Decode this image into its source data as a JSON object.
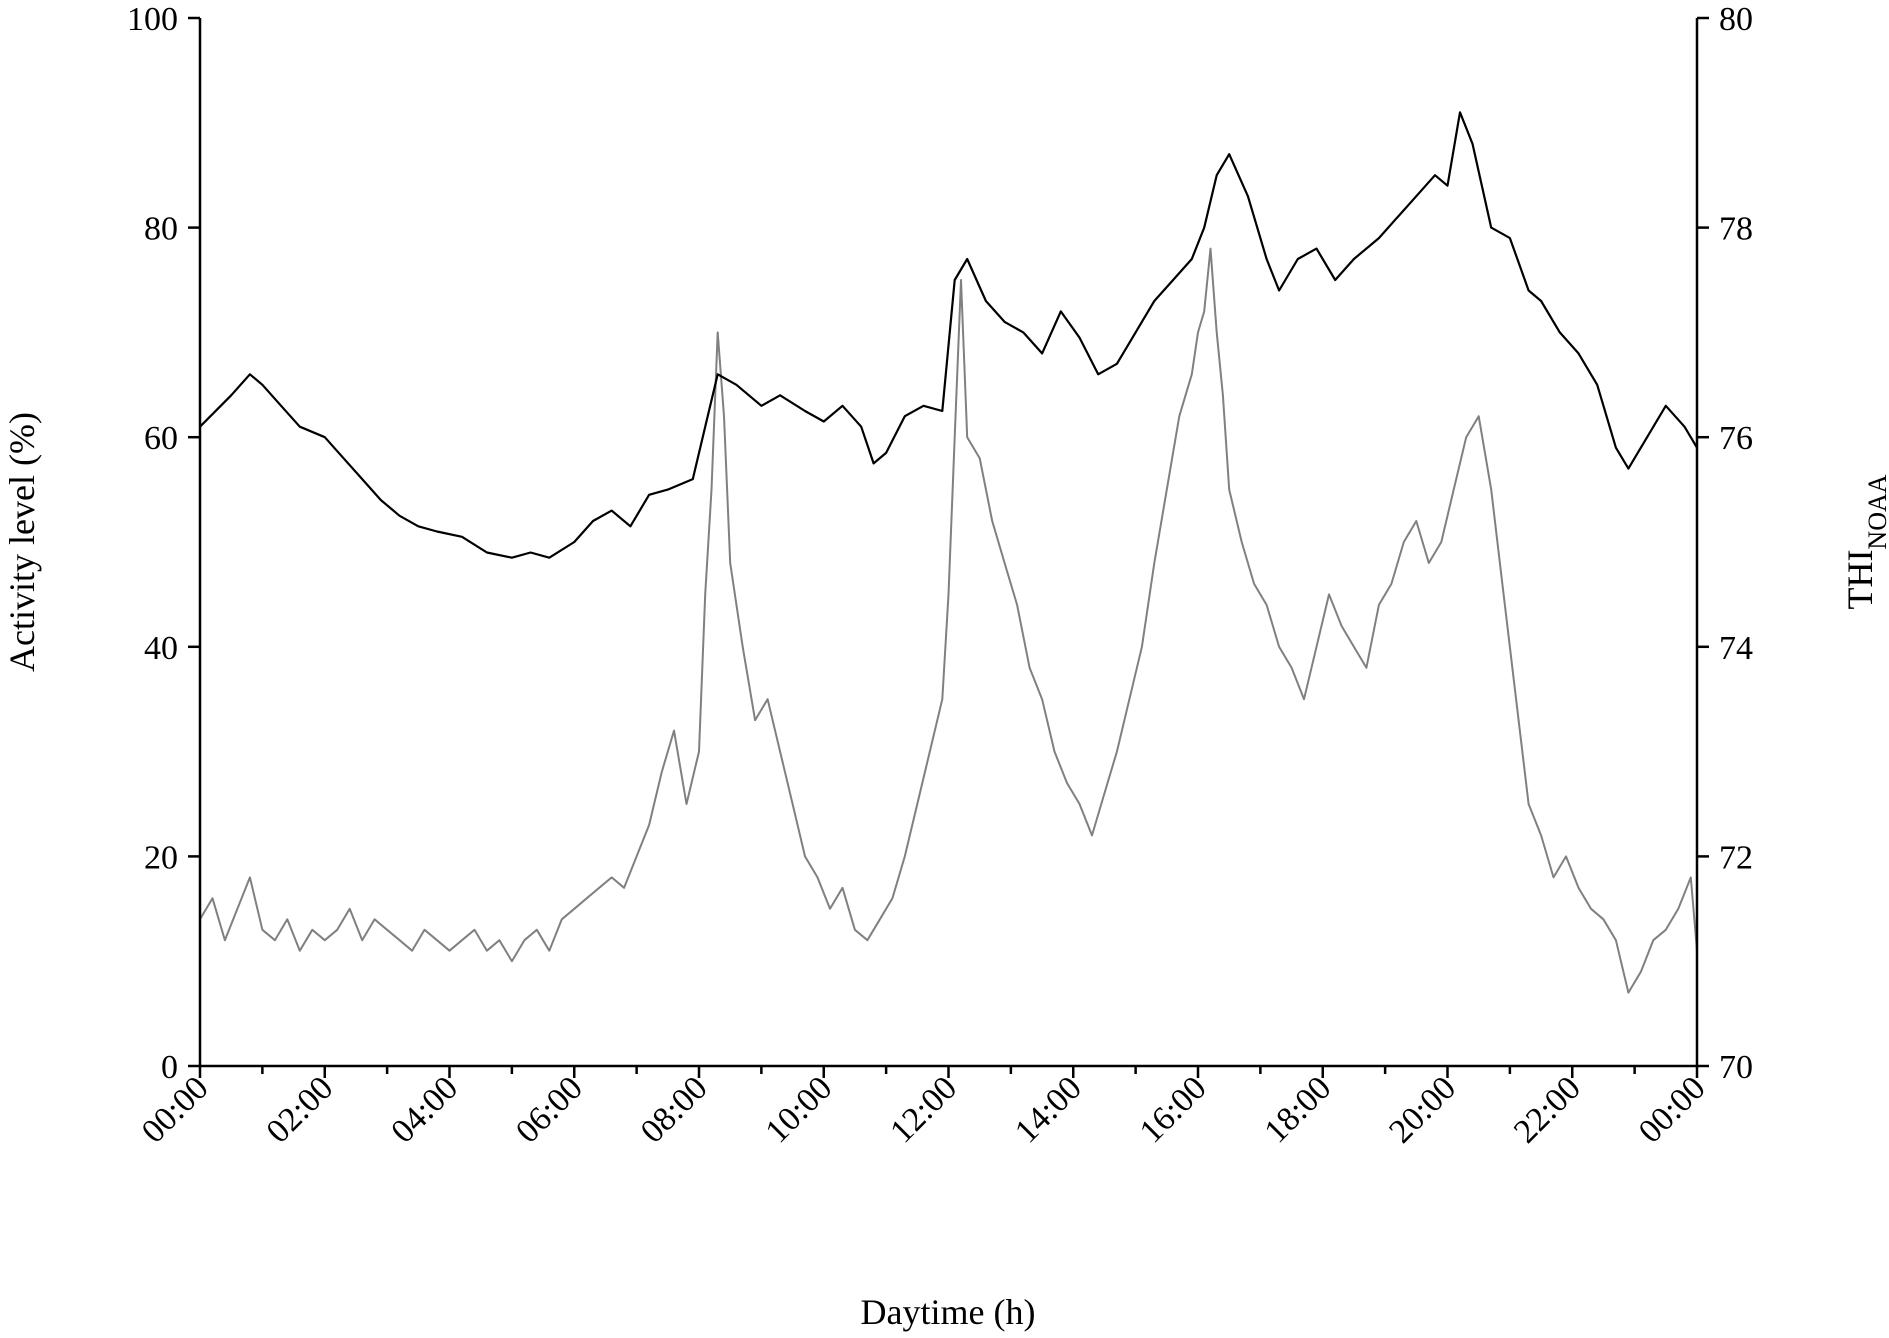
{
  "chart_data": {
    "type": "line",
    "title": "",
    "xlabel": "Daytime (h)",
    "ylabel_left": "Activity level (%)",
    "ylabel_right_main": "THI",
    "ylabel_right_sub": "NOAA",
    "xlim": [
      0,
      24
    ],
    "ylim_left": [
      0,
      100
    ],
    "ylim_right": [
      70,
      80
    ],
    "x_ticks": [
      "00:00",
      "02:00",
      "04:00",
      "06:00",
      "08:00",
      "10:00",
      "12:00",
      "14:00",
      "16:00",
      "18:00",
      "20:00",
      "22:00",
      "00:00"
    ],
    "y_ticks_left": [
      "0",
      "20",
      "40",
      "60",
      "80",
      "100"
    ],
    "y_ticks_right": [
      "70",
      "72",
      "74",
      "76",
      "78",
      "80"
    ],
    "grid": false,
    "legend": "none",
    "series": [
      {
        "axis": "right",
        "color": "#000000",
        "x": [
          0,
          0.5,
          0.8,
          1.0,
          1.3,
          1.6,
          2.0,
          2.3,
          2.6,
          2.9,
          3.2,
          3.5,
          3.8,
          4.2,
          4.6,
          5.0,
          5.3,
          5.6,
          6.0,
          6.3,
          6.6,
          6.9,
          7.2,
          7.5,
          7.7,
          7.9,
          8.1,
          8.3,
          8.6,
          9.0,
          9.3,
          9.7,
          10.0,
          10.3,
          10.6,
          10.8,
          11.0,
          11.3,
          11.6,
          11.9,
          12.1,
          12.3,
          12.6,
          12.9,
          13.2,
          13.5,
          13.8,
          14.1,
          14.4,
          14.7,
          15.0,
          15.3,
          15.6,
          15.9,
          16.1,
          16.3,
          16.5,
          16.8,
          17.1,
          17.3,
          17.6,
          17.9,
          18.2,
          18.5,
          18.9,
          19.2,
          19.5,
          19.8,
          20.0,
          20.2,
          20.4,
          20.7,
          21.0,
          21.3,
          21.5,
          21.8,
          22.1,
          22.4,
          22.7,
          22.9,
          23.2,
          23.5,
          23.8,
          24.0
        ],
        "y": [
          76.1,
          76.4,
          76.6,
          76.5,
          76.3,
          76.1,
          76.0,
          75.8,
          75.6,
          75.4,
          75.25,
          75.15,
          75.1,
          75.05,
          74.9,
          74.85,
          74.9,
          74.85,
          75.0,
          75.2,
          75.3,
          75.15,
          75.45,
          75.5,
          75.55,
          75.6,
          76.1,
          76.6,
          76.5,
          76.3,
          76.4,
          76.25,
          76.15,
          76.3,
          76.1,
          75.75,
          75.85,
          76.2,
          76.3,
          76.25,
          77.5,
          77.7,
          77.3,
          77.1,
          77.0,
          76.8,
          77.2,
          76.95,
          76.6,
          76.7,
          77.0,
          77.3,
          77.5,
          77.7,
          78.0,
          78.5,
          78.7,
          78.3,
          77.7,
          77.4,
          77.7,
          77.8,
          77.5,
          77.7,
          77.9,
          78.1,
          78.3,
          78.5,
          78.4,
          79.1,
          78.8,
          78.0,
          77.9,
          77.4,
          77.3,
          77.0,
          76.8,
          76.5,
          75.9,
          75.7,
          76.0,
          76.3,
          76.1,
          75.9
        ]
      },
      {
        "axis": "left",
        "color": "#808080",
        "x": [
          0,
          0.2,
          0.4,
          0.6,
          0.8,
          1.0,
          1.2,
          1.4,
          1.6,
          1.8,
          2.0,
          2.2,
          2.4,
          2.6,
          2.8,
          3.0,
          3.2,
          3.4,
          3.6,
          3.8,
          4.0,
          4.2,
          4.4,
          4.6,
          4.8,
          5.0,
          5.2,
          5.4,
          5.6,
          5.8,
          6.0,
          6.2,
          6.4,
          6.6,
          6.8,
          7.0,
          7.2,
          7.4,
          7.6,
          7.8,
          8.0,
          8.1,
          8.2,
          8.3,
          8.4,
          8.5,
          8.7,
          8.9,
          9.1,
          9.3,
          9.5,
          9.7,
          9.9,
          10.1,
          10.3,
          10.5,
          10.7,
          10.9,
          11.1,
          11.3,
          11.5,
          11.7,
          11.9,
          12.0,
          12.1,
          12.2,
          12.3,
          12.5,
          12.7,
          12.9,
          13.1,
          13.3,
          13.5,
          13.7,
          13.9,
          14.1,
          14.3,
          14.5,
          14.7,
          14.9,
          15.1,
          15.3,
          15.5,
          15.7,
          15.9,
          16.0,
          16.1,
          16.2,
          16.3,
          16.4,
          16.5,
          16.7,
          16.9,
          17.1,
          17.3,
          17.5,
          17.7,
          17.9,
          18.1,
          18.3,
          18.5,
          18.7,
          18.9,
          19.1,
          19.3,
          19.5,
          19.7,
          19.9,
          20.1,
          20.3,
          20.5,
          20.7,
          20.9,
          21.1,
          21.3,
          21.5,
          21.7,
          21.9,
          22.1,
          22.3,
          22.5,
          22.7,
          22.9,
          23.1,
          23.3,
          23.5,
          23.7,
          23.9,
          24.0
        ],
        "y": [
          14,
          16,
          12,
          15,
          18,
          13,
          12,
          14,
          11,
          13,
          12,
          13,
          15,
          12,
          14,
          13,
          12,
          11,
          13,
          12,
          11,
          12,
          13,
          11,
          12,
          10,
          12,
          13,
          11,
          14,
          15,
          16,
          17,
          18,
          17,
          20,
          23,
          28,
          32,
          25,
          30,
          45,
          55,
          70,
          62,
          48,
          40,
          33,
          35,
          30,
          25,
          20,
          18,
          15,
          17,
          13,
          12,
          14,
          16,
          20,
          25,
          30,
          35,
          45,
          60,
          75,
          60,
          58,
          52,
          48,
          44,
          38,
          35,
          30,
          27,
          25,
          22,
          26,
          30,
          35,
          40,
          48,
          55,
          62,
          66,
          70,
          72,
          78,
          70,
          64,
          55,
          50,
          46,
          44,
          40,
          38,
          35,
          40,
          45,
          42,
          40,
          38,
          44,
          46,
          50,
          52,
          48,
          50,
          55,
          60,
          62,
          55,
          45,
          35,
          25,
          22,
          18,
          20,
          17,
          15,
          14,
          12,
          7,
          9,
          12,
          13,
          15,
          18,
          11
        ]
      }
    ]
  }
}
